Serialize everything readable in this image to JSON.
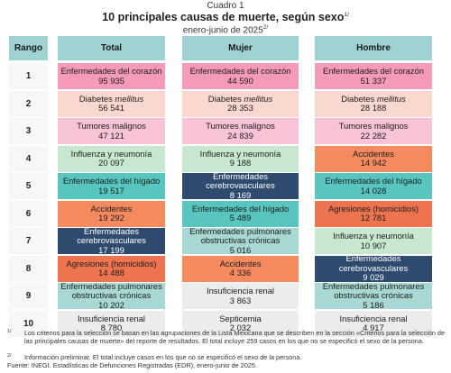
{
  "header": {
    "label": "Cuadro 1",
    "title": "10 principales causas de muerte, según sexo",
    "title_note": "1/",
    "subtitle": "enero-junio de 2025",
    "subtitle_note": "2/"
  },
  "columns": {
    "rank": "Rango",
    "total": "Total",
    "mujer": "Mujer",
    "hombre": "Hombre"
  },
  "palette": {
    "heart": "#f59ab9",
    "diabetes": "#fbd8cf",
    "tumor": "#f8c3d6",
    "flu": "#c7e8cf",
    "liver": "#58c6bf",
    "cerebro": "#2e4a6e",
    "accident": "#f58a5f",
    "homicide": "#ee7450",
    "epoc": "#a8d8d3",
    "kidney": "#ececec",
    "septic": "#ececec"
  },
  "rows": [
    {
      "rank": "1",
      "total": {
        "label": "Enfermedades del corazón",
        "value": "95 935",
        "key": "heart"
      },
      "mujer": {
        "label": "Enfermedades del corazón",
        "value": "44 590",
        "key": "heart"
      },
      "hombre": {
        "label": "Enfermedades del corazón",
        "value": "51 337",
        "key": "heart"
      }
    },
    {
      "rank": "2",
      "total": {
        "label": "Diabetes",
        "label_italic": "mellitus",
        "value": "56 541",
        "key": "diabetes"
      },
      "mujer": {
        "label": "Diabetes",
        "label_italic": "mellitus",
        "value": "28 353",
        "key": "diabetes"
      },
      "hombre": {
        "label": "Diabetes",
        "label_italic": "mellitus",
        "value": "28 188",
        "key": "diabetes"
      }
    },
    {
      "rank": "3",
      "total": {
        "label": "Tumores malignos",
        "value": "47 121",
        "key": "tumor"
      },
      "mujer": {
        "label": "Tumores malignos",
        "value": "24 839",
        "key": "tumor"
      },
      "hombre": {
        "label": "Tumores malignos",
        "value": "22 282",
        "key": "tumor"
      }
    },
    {
      "rank": "4",
      "total": {
        "label": "Influenza y neumonía",
        "value": "20 097",
        "key": "flu"
      },
      "mujer": {
        "label": "Influenza y neumonía",
        "value": "9 188",
        "key": "flu"
      },
      "hombre": {
        "label": "Accidentes",
        "value": "14 942",
        "key": "accident"
      }
    },
    {
      "rank": "5",
      "total": {
        "label": "Enfermedades del hígado",
        "value": "19 517",
        "key": "liver"
      },
      "mujer": {
        "label": "Enfermedades cerebrovasculares",
        "value": "8 169",
        "key": "cerebro"
      },
      "hombre": {
        "label": "Enfermedades del hígado",
        "value": "14 028",
        "key": "liver"
      }
    },
    {
      "rank": "6",
      "total": {
        "label": "Accidentes",
        "value": "19 292",
        "key": "accident"
      },
      "mujer": {
        "label": "Enfermedades del hígado",
        "value": "5 489",
        "key": "liver"
      },
      "hombre": {
        "label": "Agresiones (homicidios)",
        "value": "12 781",
        "key": "homicide"
      }
    },
    {
      "rank": "7",
      "total": {
        "label": "Enfermedades cerebrovasculares",
        "value": "17 199",
        "key": "cerebro"
      },
      "mujer": {
        "label": "Enfermedades pulmonares obstructivas crónicas",
        "value": "5 016",
        "key": "epoc"
      },
      "hombre": {
        "label": "Influenza y neumonía",
        "value": "10 907",
        "key": "flu"
      }
    },
    {
      "rank": "8",
      "total": {
        "label": "Agresiones (homicidios)",
        "value": "14 488",
        "key": "homicide"
      },
      "mujer": {
        "label": "Accidentes",
        "value": "4 336",
        "key": "accident"
      },
      "hombre": {
        "label": "Enfermedades cerebrovasculares",
        "value": "9 029",
        "key": "cerebro"
      }
    },
    {
      "rank": "9",
      "total": {
        "label": "Enfermedades pulmonares obstructivas crónicas",
        "value": "10 202",
        "key": "epoc"
      },
      "mujer": {
        "label": "Insuficiencia renal",
        "value": "3 863",
        "key": "kidney"
      },
      "hombre": {
        "label": "Enfermedades pulmonares obstructivas crónicas",
        "value": "5 186",
        "key": "epoc"
      }
    },
    {
      "rank": "10",
      "total": {
        "label": "Insuficiencia renal",
        "value": "8 780",
        "key": "kidney"
      },
      "mujer": {
        "label": "Septicemia",
        "value": "2 032",
        "key": "septic"
      },
      "hombre": {
        "label": "Insuficiencia renal",
        "value": "4 917",
        "key": "kidney"
      }
    }
  ],
  "footnotes": [
    {
      "mark": "1/",
      "text": "Los criterios para la selección se basan en las agrupaciones de la Lista Mexicana que se describen en la sección «Criterios para la selección de las principales causas de muerte» del reporte de resultados. El total incluye 259 casos en los que no se especificó el sexo de la persona."
    },
    {
      "mark": "2/",
      "text": "Información preliminar. El total incluye casos en los que no se especificó el sexo de la persona."
    },
    {
      "mark": "",
      "text": "Fuente: INEGI. Estadísticas de Defunciones Registradas (EDR), enero-junio de 2025."
    }
  ]
}
